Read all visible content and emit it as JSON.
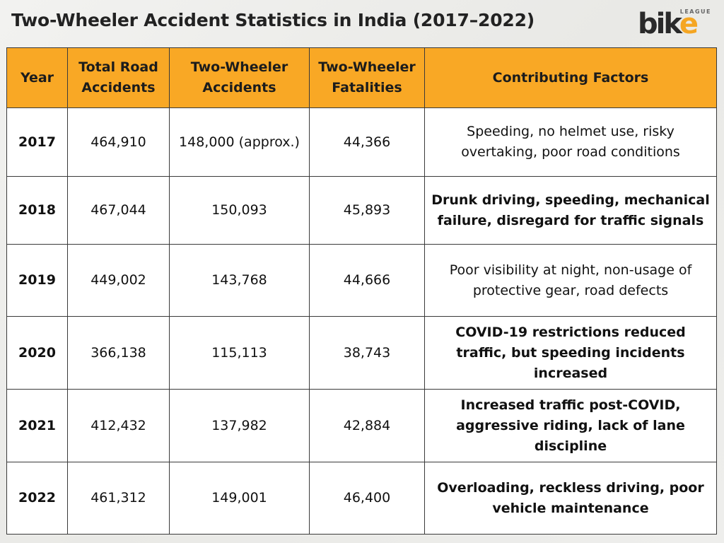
{
  "header": {
    "title": "Two-Wheeler Accident Statistics in India (2017–2022)",
    "logo_main_dark": "bik",
    "logo_main_accent": "e",
    "logo_small": "LEAGUE",
    "accent_color": "#f9a825"
  },
  "table": {
    "columns": [
      "Year",
      "Total Road Accidents",
      "Two-Wheeler Accidents",
      "Two-Wheeler Fatalities",
      "Contributing Factors"
    ],
    "rows": [
      {
        "year": "2017",
        "total": "464,910",
        "two_wheeler": "148,000 (approx.)",
        "fatalities": "44,366",
        "factors": "Speeding, no helmet use, risky overtaking, poor road conditions",
        "factors_bold": false
      },
      {
        "year": "2018",
        "total": "467,044",
        "two_wheeler": "150,093",
        "fatalities": "45,893",
        "factors": "Drunk driving, speeding, mechanical failure, disregard for traffic signals",
        "factors_bold": true
      },
      {
        "year": "2019",
        "total": "449,002",
        "two_wheeler": "143,768",
        "fatalities": "44,666",
        "factors": "Poor visibility at night, non-usage of protective gear, road defects",
        "factors_bold": false
      },
      {
        "year": "2020",
        "total": "366,138",
        "two_wheeler": "115,113",
        "fatalities": "38,743",
        "factors": "COVID-19 restrictions reduced traffic, but speeding incidents increased",
        "factors_bold": true
      },
      {
        "year": "2021",
        "total": "412,432",
        "two_wheeler": "137,982",
        "fatalities": "42,884",
        "factors": "Increased traffic post-COVID, aggressive riding, lack of lane discipline",
        "factors_bold": true
      },
      {
        "year": "2022",
        "total": "461,312",
        "two_wheeler": "149,001",
        "fatalities": "46,400",
        "factors": "Overloading, reckless driving, poor vehicle maintenance",
        "factors_bold": true
      }
    ]
  }
}
